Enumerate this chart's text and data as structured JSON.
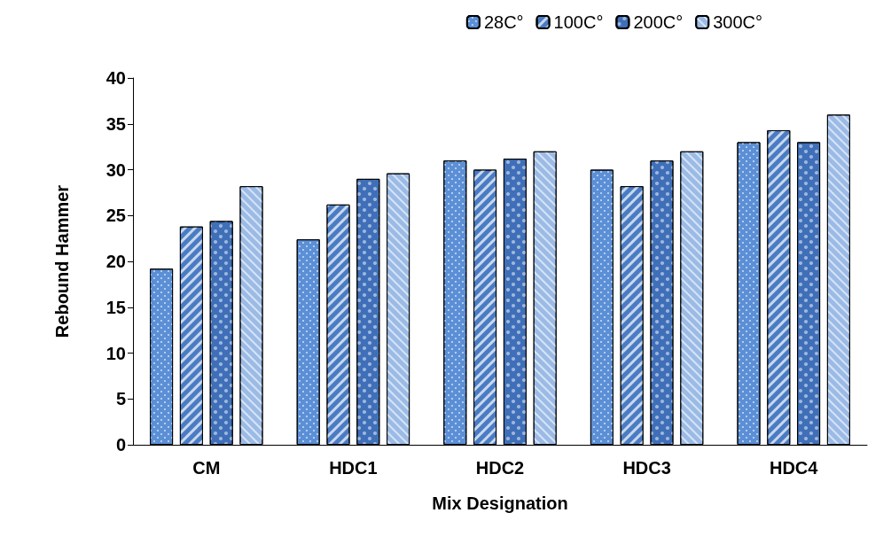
{
  "chart_data": {
    "type": "bar",
    "xlabel": "Mix Designation",
    "ylabel": "Rebound Hammer",
    "categories": [
      "CM",
      "HDC1",
      "HDC2",
      "HDC3",
      "HDC4"
    ],
    "series": [
      {
        "name": "28C°",
        "color": "#5b8fd6",
        "values": [
          19.2,
          22.4,
          31,
          30,
          33
        ]
      },
      {
        "name": "100C°",
        "color": "#4a7cc4",
        "values": [
          23.8,
          26.2,
          30,
          28.2,
          34.3
        ]
      },
      {
        "name": "200C°",
        "color": "#3f6fb8",
        "values": [
          24.4,
          29,
          31.2,
          31,
          33
        ]
      },
      {
        "name": "300C°",
        "color": "#9bbbe6",
        "values": [
          28.2,
          29.6,
          32,
          32,
          36
        ]
      }
    ],
    "ylim": [
      0,
      40
    ],
    "yticks": [
      0,
      5,
      10,
      15,
      20,
      25,
      30,
      35,
      40
    ],
    "grid": false,
    "legend": "top right"
  }
}
